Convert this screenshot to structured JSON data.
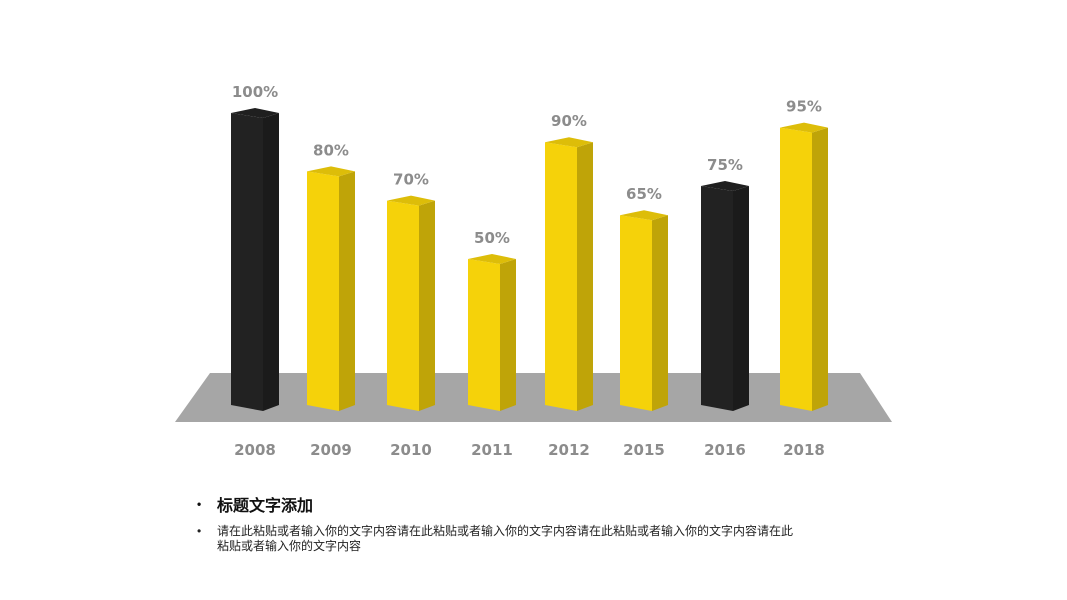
{
  "chart_data": {
    "type": "bar",
    "style": "3d-column",
    "categories": [
      "2008",
      "2009",
      "2010",
      "2011",
      "2012",
      "2015",
      "2016",
      "2018"
    ],
    "values": [
      100,
      80,
      70,
      50,
      90,
      65,
      75,
      95
    ],
    "data_labels": [
      "100%",
      "80%",
      "70%",
      "50%",
      "90%",
      "65%",
      "75%",
      "95%"
    ],
    "bar_colors": [
      "#222222",
      "#f5d20a",
      "#f5d20a",
      "#f5d20a",
      "#f5d20a",
      "#f5d20a",
      "#222222",
      "#f5d20a"
    ],
    "ylim": [
      0,
      100
    ],
    "unit": "%",
    "grid": false,
    "floor_color": "#a6a6a6"
  },
  "notes": {
    "title": "标题文字添加",
    "body": "请在此粘贴或者输入你的文字内容请在此粘贴或者输入你的文字内容请在此粘贴或者输入你的文字内容请在此粘贴或者输入你的文字内容"
  }
}
